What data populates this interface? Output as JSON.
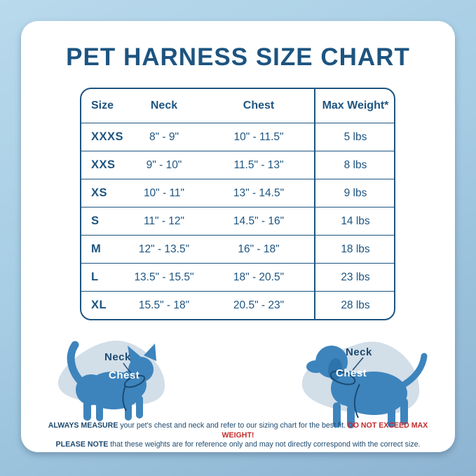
{
  "title": "PET HARNESS SIZE CHART",
  "table": {
    "headers": [
      "Size",
      "Neck",
      "Chest",
      "Max Weight*"
    ],
    "rows": [
      {
        "size": "XXXS",
        "neck": "8\" - 9\"",
        "chest": "10\" - 11.5\"",
        "max_weight": "5 lbs"
      },
      {
        "size": "XXS",
        "neck": "9\" - 10\"",
        "chest": "11.5\" - 13\"",
        "max_weight": "8 lbs"
      },
      {
        "size": "XS",
        "neck": "10\" - 11\"",
        "chest": "13\" - 14.5\"",
        "max_weight": "9 lbs"
      },
      {
        "size": "S",
        "neck": "11\" - 12\"",
        "chest": "14.5\" - 16\"",
        "max_weight": "14 lbs"
      },
      {
        "size": "M",
        "neck": "12\" - 13.5\"",
        "chest": "16\" - 18\"",
        "max_weight": "18 lbs"
      },
      {
        "size": "L",
        "neck": "13.5\" - 15.5\"",
        "chest": "18\" - 20.5\"",
        "max_weight": "23 lbs"
      },
      {
        "size": "XL",
        "neck": "15.5\" - 18\"",
        "chest": "20.5\" - 23\"",
        "max_weight": "28 lbs"
      }
    ]
  },
  "diagrams": {
    "cat": {
      "icon": "cat-silhouette-icon",
      "neck_label": "Neck",
      "chest_label": "Chest"
    },
    "dog": {
      "icon": "dog-silhouette-icon",
      "neck_label": "Neck",
      "chest_label": "Chest"
    }
  },
  "footer": {
    "line1_bold": "ALWAYS MEASURE",
    "line1_text": " your pet's chest and neck and refer to our sizing chart for the best fit. ",
    "line1_warning": "DO NOT EXCEED MAX WEIGHT!",
    "line2_bold": "PLEASE NOTE",
    "line2_text": " that these weights are for reference only and may not directly correspond with the correct size."
  },
  "colors": {
    "navy_text": "#1d5480",
    "warning_red": "#c42b2b",
    "animal_blue": "#3d84bd",
    "blob_gray_blue": "#d2dee8",
    "background_blue": "#a6cde4",
    "card_white": "#ffffff"
  }
}
